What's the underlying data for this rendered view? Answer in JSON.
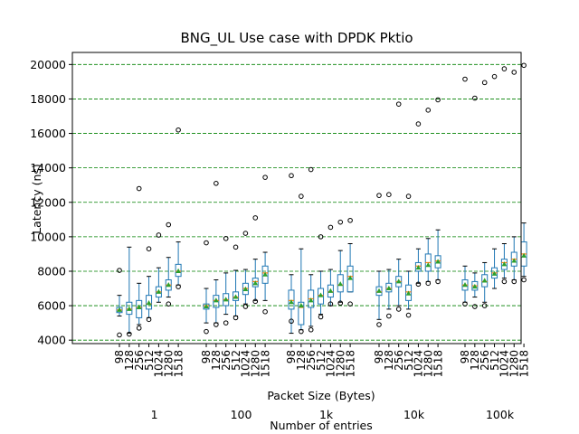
{
  "chart_data": {
    "type": "boxplot",
    "title": "BNG_UL Use case with DPDK Pktio",
    "xlabel": "Packet Size (Bytes)",
    "group_axis_label": "Number of entries",
    "ylabel": "Latency (ns)",
    "ylim": [
      3800,
      20700
    ],
    "yticks": [
      4000,
      6000,
      8000,
      10000,
      12000,
      14000,
      16000,
      18000,
      20000
    ],
    "grid": "horizontal dashed",
    "colors": {
      "grid": "#008000",
      "box": "#1f77b4",
      "median": "#ff7f0e",
      "mean": "#2ca02c",
      "flier": "#000000"
    },
    "packet_sizes": [
      "98",
      "128",
      "256",
      "512",
      "1024",
      "1280",
      "1518"
    ],
    "groups": [
      {
        "name": "1",
        "boxes": [
          {
            "size": "98",
            "whislo": 5400,
            "q1": 5600,
            "med": 5750,
            "q3": 5900,
            "whishi": 6600,
            "mean": 5750,
            "fliers": [
              8050,
              4300
            ]
          },
          {
            "size": "128",
            "whislo": 4400,
            "q1": 5500,
            "med": 5800,
            "q3": 6200,
            "whishi": 9400,
            "mean": 5800,
            "fliers": [
              4350
            ]
          },
          {
            "size": "256",
            "whislo": 4900,
            "q1": 5300,
            "med": 5900,
            "q3": 6300,
            "whishi": 7300,
            "mean": 5900,
            "fliers": [
              12800,
              4700
            ]
          },
          {
            "size": "512",
            "whislo": 5300,
            "q1": 5800,
            "med": 6100,
            "q3": 6600,
            "whishi": 7700,
            "mean": 6150,
            "fliers": [
              9300,
              5200
            ]
          },
          {
            "size": "1024",
            "whislo": 6200,
            "q1": 6500,
            "med": 6800,
            "q3": 7100,
            "whishi": 8200,
            "mean": 6800,
            "fliers": [
              10100
            ]
          },
          {
            "size": "1280",
            "whislo": 6500,
            "q1": 6900,
            "med": 7200,
            "q3": 7500,
            "whishi": 8800,
            "mean": 7200,
            "fliers": [
              10700,
              6100
            ]
          },
          {
            "size": "1518",
            "whislo": 7200,
            "q1": 7700,
            "med": 8000,
            "q3": 8400,
            "whishi": 9700,
            "mean": 8000,
            "fliers": [
              16200,
              7100
            ]
          }
        ]
      },
      {
        "name": "100",
        "boxes": [
          {
            "size": "98",
            "whislo": 5000,
            "q1": 5800,
            "med": 6000,
            "q3": 6100,
            "whishi": 7000,
            "mean": 5950,
            "fliers": [
              9650,
              4500
            ]
          },
          {
            "size": "128",
            "whislo": 5000,
            "q1": 5900,
            "med": 6300,
            "q3": 6600,
            "whishi": 7500,
            "mean": 6300,
            "fliers": [
              13100,
              4900
            ]
          },
          {
            "size": "256",
            "whislo": 5500,
            "q1": 6000,
            "med": 6350,
            "q3": 6700,
            "whishi": 7900,
            "mean": 6350,
            "fliers": [
              9900,
              5000
            ]
          },
          {
            "size": "512",
            "whislo": 5400,
            "q1": 6300,
            "med": 6500,
            "q3": 6800,
            "whishi": 8050,
            "mean": 6500,
            "fliers": [
              9400,
              5300
            ]
          },
          {
            "size": "1024",
            "whislo": 6100,
            "q1": 6650,
            "med": 7000,
            "q3": 7300,
            "whishi": 8100,
            "mean": 6950,
            "fliers": [
              10200,
              5950
            ]
          },
          {
            "size": "1280",
            "whislo": 6300,
            "q1": 7100,
            "med": 7400,
            "q3": 7600,
            "whishi": 8700,
            "mean": 7300,
            "fliers": [
              11100,
              6250
            ]
          },
          {
            "size": "1518",
            "whislo": 6300,
            "q1": 7300,
            "med": 7900,
            "q3": 8300,
            "whishi": 9100,
            "mean": 7800,
            "fliers": [
              13450,
              5650
            ]
          }
        ]
      },
      {
        "name": "1k",
        "boxes": [
          {
            "size": "98",
            "whislo": 4400,
            "q1": 5800,
            "med": 6300,
            "q3": 6900,
            "whishi": 7800,
            "mean": 6200,
            "fliers": [
              13550,
              5100
            ]
          },
          {
            "size": "128",
            "whislo": 4600,
            "q1": 4900,
            "med": 5900,
            "q3": 6200,
            "whishi": 9300,
            "mean": 6000,
            "fliers": [
              12350,
              4500
            ]
          },
          {
            "size": "256",
            "whislo": 4800,
            "q1": 5900,
            "med": 6400,
            "q3": 6900,
            "whishi": 7800,
            "mean": 6300,
            "fliers": [
              13900,
              4600
            ]
          },
          {
            "size": "512",
            "whislo": 5500,
            "q1": 6100,
            "med": 6600,
            "q3": 7000,
            "whishi": 8000,
            "mean": 6600,
            "fliers": [
              10000,
              5350
            ]
          },
          {
            "size": "1024",
            "whislo": 6000,
            "q1": 6500,
            "med": 6800,
            "q3": 7200,
            "whishi": 8100,
            "mean": 6850,
            "fliers": [
              10550,
              6100
            ]
          },
          {
            "size": "1280",
            "whislo": 6200,
            "q1": 6800,
            "med": 7200,
            "q3": 7800,
            "whishi": 9200,
            "mean": 7250,
            "fliers": [
              10850,
              6150
            ]
          },
          {
            "size": "1518",
            "whislo": 6800,
            "q1": 6800,
            "med": 7700,
            "q3": 8300,
            "whishi": 9600,
            "mean": 7600,
            "fliers": [
              10950,
              6100
            ]
          }
        ]
      },
      {
        "name": "10k",
        "boxes": [
          {
            "size": "98",
            "whislo": 5200,
            "q1": 6600,
            "med": 6800,
            "q3": 7100,
            "whishi": 8000,
            "mean": 6850,
            "fliers": [
              12400,
              4900
            ]
          },
          {
            "size": "128",
            "whislo": 5800,
            "q1": 6800,
            "med": 7000,
            "q3": 7300,
            "whishi": 8100,
            "mean": 7000,
            "fliers": [
              12450,
              5400
            ]
          },
          {
            "size": "256",
            "whislo": 6000,
            "q1": 7100,
            "med": 7400,
            "q3": 7700,
            "whishi": 8700,
            "mean": 7400,
            "fliers": [
              17700,
              5800
            ]
          },
          {
            "size": "512",
            "whislo": 5800,
            "q1": 6300,
            "med": 6800,
            "q3": 7200,
            "whishi": 8000,
            "mean": 6700,
            "fliers": [
              12350,
              5450
            ]
          },
          {
            "size": "1024",
            "whislo": 7300,
            "q1": 8000,
            "med": 8300,
            "q3": 8500,
            "whishi": 9300,
            "mean": 8200,
            "fliers": [
              16550,
              7250
            ]
          },
          {
            "size": "1280",
            "whislo": 7400,
            "q1": 8000,
            "med": 8500,
            "q3": 9000,
            "whishi": 9900,
            "mean": 8350,
            "fliers": [
              17350,
              7300
            ]
          },
          {
            "size": "1518",
            "whislo": 7500,
            "q1": 8200,
            "med": 8600,
            "q3": 8900,
            "whishi": 10400,
            "mean": 8550,
            "fliers": [
              17950,
              7400
            ]
          }
        ]
      },
      {
        "name": "100k",
        "boxes": [
          {
            "size": "98",
            "whislo": 6200,
            "q1": 6900,
            "med": 7200,
            "q3": 7500,
            "whishi": 8300,
            "mean": 7200,
            "fliers": [
              19150,
              6100
            ]
          },
          {
            "size": "128",
            "whislo": 6500,
            "q1": 6900,
            "med": 7150,
            "q3": 7400,
            "whishi": 7900,
            "mean": 7100,
            "fliers": [
              18050,
              5950
            ]
          },
          {
            "size": "256",
            "whislo": 6200,
            "q1": 7100,
            "med": 7400,
            "q3": 7800,
            "whishi": 8500,
            "mean": 7450,
            "fliers": [
              18950,
              6000
            ]
          },
          {
            "size": "512",
            "whislo": 7000,
            "q1": 7600,
            "med": 7900,
            "q3": 8200,
            "whishi": 9300,
            "mean": 7850,
            "fliers": [
              19300
            ]
          },
          {
            "size": "1024",
            "whislo": 7600,
            "q1": 8100,
            "med": 8500,
            "q3": 8700,
            "whishi": 9600,
            "mean": 8400,
            "fliers": [
              19750,
              7400
            ]
          },
          {
            "size": "1280",
            "whislo": 7500,
            "q1": 8300,
            "med": 8700,
            "q3": 9100,
            "whishi": 10000,
            "mean": 8600,
            "fliers": [
              19550,
              7400
            ]
          },
          {
            "size": "1518",
            "whislo": 7700,
            "q1": 8300,
            "med": 9000,
            "q3": 9700,
            "whishi": 10800,
            "mean": 8900,
            "fliers": [
              19950,
              7500
            ]
          }
        ]
      }
    ]
  }
}
